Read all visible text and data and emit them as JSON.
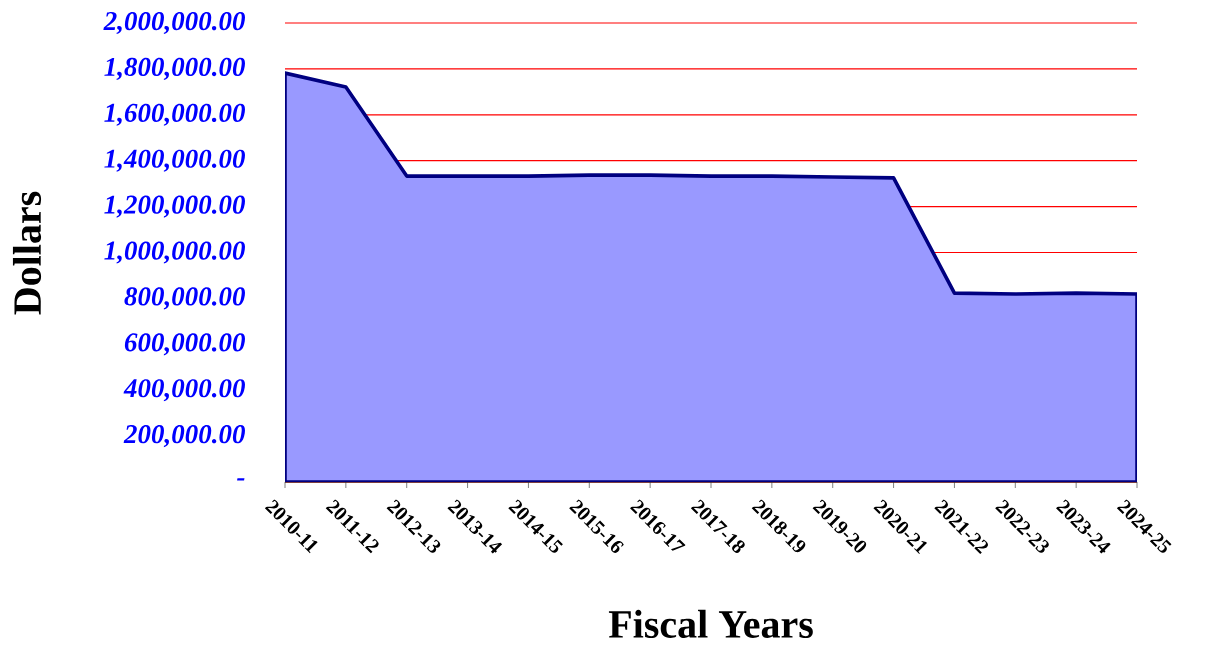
{
  "chart_data": {
    "type": "area",
    "xlabel": "Fiscal Years",
    "ylabel": "Dollars",
    "categories": [
      "2010-11",
      "2011-12",
      "2012-13",
      "2013-14",
      "2014-15",
      "2015-16",
      "2016-17",
      "2017-18",
      "2018-19",
      "2019-20",
      "2020-21",
      "2021-22",
      "2022-23",
      "2023-24",
      "2024-25"
    ],
    "series": [
      {
        "color": "#9999ff",
        "values": [
          1782000,
          1721000,
          1333000,
          1333000,
          1333000,
          1337000,
          1337000,
          1333000,
          1333000,
          1329000,
          1325000,
          823000,
          819000,
          823000,
          819000
        ]
      }
    ],
    "ylim": [
      0,
      2000000
    ],
    "yticks": [
      {
        "value": 0,
        "label": "-"
      },
      {
        "value": 200000,
        "label": "200,000.00"
      },
      {
        "value": 400000,
        "label": "400,000.00"
      },
      {
        "value": 600000,
        "label": "600,000.00"
      },
      {
        "value": 800000,
        "label": "800,000.00"
      },
      {
        "value": 1000000,
        "label": "1,000,000.00"
      },
      {
        "value": 1200000,
        "label": "1,200,000.00"
      },
      {
        "value": 1400000,
        "label": "1,400,000.00"
      },
      {
        "value": 1600000,
        "label": "1,600,000.00"
      },
      {
        "value": 1800000,
        "label": "1,800,000.00"
      },
      {
        "value": 2000000,
        "label": "2,000,000.00"
      }
    ],
    "grid": "y"
  }
}
